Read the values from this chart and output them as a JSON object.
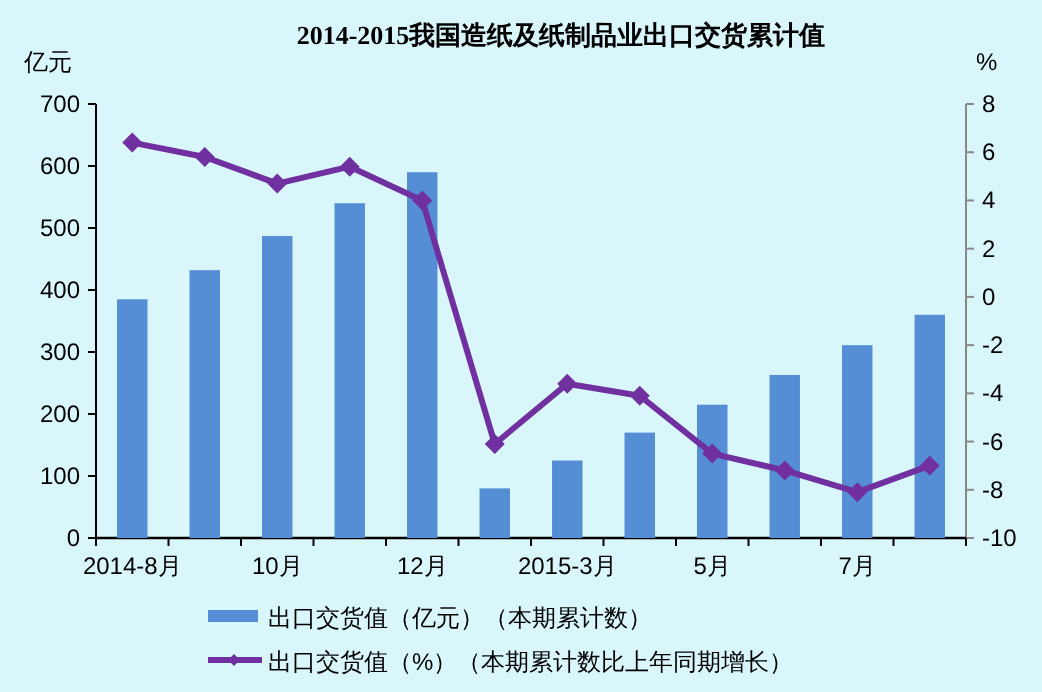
{
  "chart_data": {
    "type": "bar",
    "title": "2014-2015我国造纸及纸制品业出口交货累计值",
    "ylabel": "亿元",
    "y2label": "%",
    "categories": [
      "2014-8月",
      null,
      "10月",
      null,
      "12月",
      null,
      "2015-3月",
      null,
      "5月",
      null,
      "7月",
      null
    ],
    "series": [
      {
        "name": "出口交货值（亿元）（本期累计数）",
        "color": "#558ed5",
        "values": [
          385,
          432,
          487,
          540,
          590,
          80,
          125,
          170,
          215,
          263,
          311,
          360
        ]
      },
      {
        "name": "出口交货值（%）（本期累计数比上年同期增长）",
        "type": "line",
        "axis": "y2",
        "color": "#7030a0",
        "values": [
          6.4,
          5.8,
          4.7,
          5.4,
          4.0,
          -6.1,
          -3.6,
          -4.1,
          -6.5,
          -7.2,
          -8.1,
          -7.0
        ]
      }
    ],
    "ylim": [
      0,
      700
    ],
    "yticks": [
      0,
      100,
      200,
      300,
      400,
      500,
      600,
      700
    ],
    "y2lim": [
      -10,
      8
    ],
    "y2ticks": [
      -10,
      -8,
      -6,
      -4,
      -2,
      0,
      2,
      4,
      6,
      8
    ],
    "legend": "bottom",
    "marker": "diamond",
    "line_style": "solid"
  }
}
